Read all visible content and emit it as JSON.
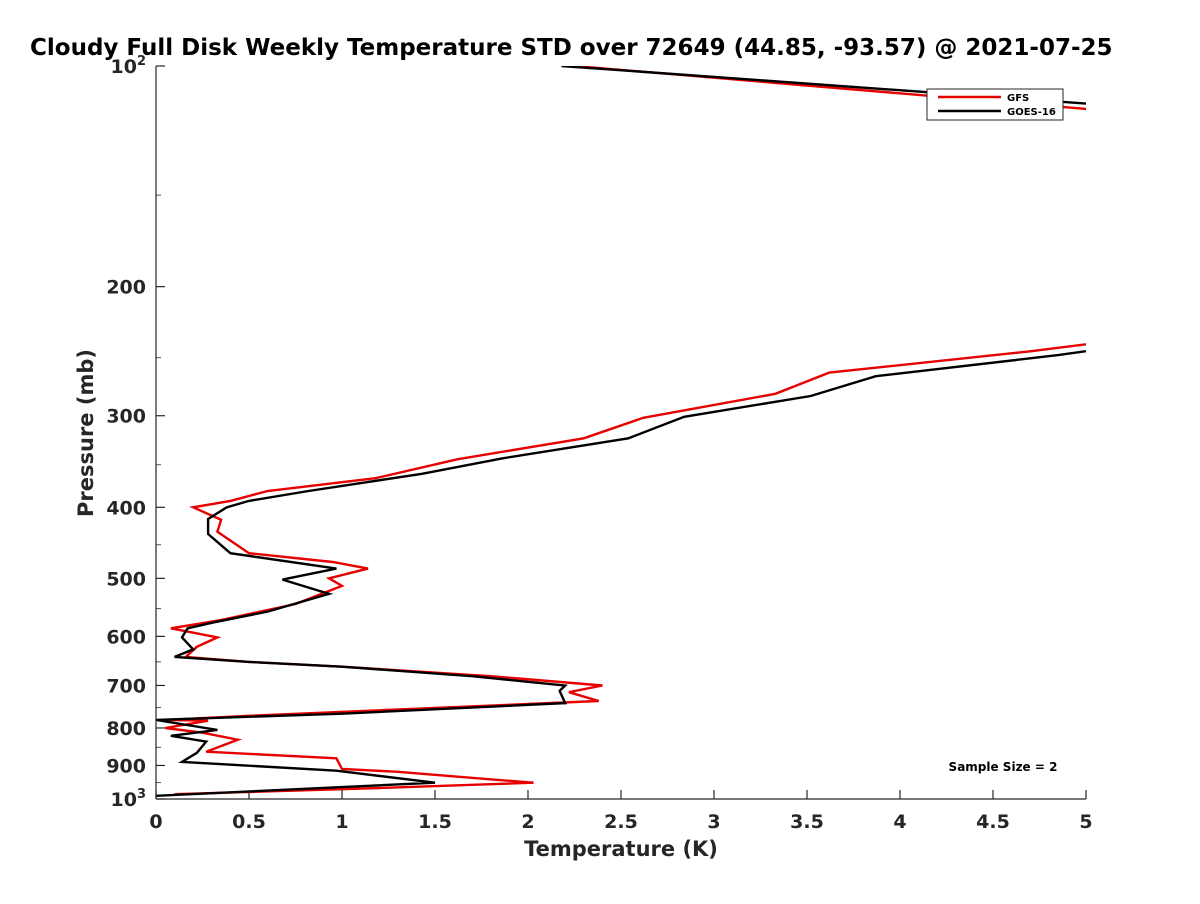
{
  "chart_data": {
    "type": "line",
    "title": "Cloudy Full Disk Weekly Temperature STD over 72649 (44.85, -93.57) @ 2021-07-25",
    "xlabel": "Temperature (K)",
    "ylabel": "Pressure (mb)",
    "xlim": [
      0,
      5
    ],
    "ylim": [
      100,
      1000
    ],
    "y_scale": "log",
    "y_direction": "reversed",
    "grid": false,
    "legend_position": "top-right",
    "x_ticks": [
      "0",
      "0.5",
      "1",
      "1.5",
      "2",
      "2.5",
      "3",
      "3.5",
      "4",
      "4.5",
      "5"
    ],
    "x_tick_values": [
      0,
      0.5,
      1,
      1.5,
      2,
      2.5,
      3,
      3.5,
      4,
      4.5,
      5
    ],
    "y_ticks": [
      {
        "value": 100,
        "base": "10",
        "exp": "2"
      },
      {
        "value": 200,
        "text": "200"
      },
      {
        "value": 300,
        "text": "300"
      },
      {
        "value": 400,
        "text": "400"
      },
      {
        "value": 500,
        "text": "500"
      },
      {
        "value": 600,
        "text": "600"
      },
      {
        "value": 700,
        "text": "700"
      },
      {
        "value": 800,
        "text": "800"
      },
      {
        "value": 900,
        "text": "900"
      },
      {
        "value": 1000,
        "base": "10",
        "exp": "3"
      }
    ],
    "annotation": "Sample Size = 2",
    "series": [
      {
        "name": "GFS",
        "color": "#e60000",
        "points": [
          [
            2.25,
            100
          ],
          [
            5.1,
            115
          ],
          [
            5.1,
            238
          ],
          [
            4.7,
            245
          ],
          [
            3.62,
            262
          ],
          [
            3.33,
            280
          ],
          [
            2.62,
            302
          ],
          [
            2.3,
            322
          ],
          [
            1.62,
            344
          ],
          [
            1.18,
            365
          ],
          [
            0.6,
            380
          ],
          [
            0.4,
            392
          ],
          [
            0.2,
            400
          ],
          [
            0.35,
            416
          ],
          [
            0.33,
            432
          ],
          [
            0.5,
            462
          ],
          [
            0.95,
            475
          ],
          [
            1.14,
            485
          ],
          [
            0.93,
            500
          ],
          [
            1.0,
            512
          ],
          [
            0.75,
            542
          ],
          [
            0.35,
            570
          ],
          [
            0.08,
            585
          ],
          [
            0.33,
            602
          ],
          [
            0.22,
            620
          ],
          [
            0.16,
            640
          ],
          [
            0.5,
            650
          ],
          [
            1.0,
            660
          ],
          [
            1.8,
            680
          ],
          [
            2.4,
            700
          ],
          [
            2.22,
            715
          ],
          [
            2.38,
            735
          ],
          [
            0.5,
            770
          ],
          [
            0.05,
            780
          ],
          [
            0.28,
            782
          ],
          [
            0.05,
            800
          ],
          [
            0.25,
            812
          ],
          [
            0.44,
            830
          ],
          [
            0.27,
            862
          ],
          [
            0.97,
            880
          ],
          [
            1.0,
            910
          ],
          [
            1.3,
            918
          ],
          [
            1.68,
            935
          ],
          [
            2.03,
            950
          ],
          [
            1.2,
            966
          ],
          [
            0.1,
            985
          ]
        ]
      },
      {
        "name": "GOES-16",
        "color": "#000000",
        "points": [
          [
            2.18,
            100
          ],
          [
            5.1,
            113
          ],
          [
            5.1,
            243
          ],
          [
            4.85,
            248
          ],
          [
            3.87,
            265
          ],
          [
            3.52,
            282
          ],
          [
            2.84,
            301
          ],
          [
            2.54,
            322
          ],
          [
            1.86,
            343
          ],
          [
            1.43,
            360
          ],
          [
            0.82,
            380
          ],
          [
            0.5,
            392
          ],
          [
            0.38,
            400
          ],
          [
            0.28,
            415
          ],
          [
            0.28,
            435
          ],
          [
            0.4,
            462
          ],
          [
            0.97,
            485
          ],
          [
            0.68,
            502
          ],
          [
            0.93,
            525
          ],
          [
            0.6,
            555
          ],
          [
            0.3,
            575
          ],
          [
            0.17,
            585
          ],
          [
            0.14,
            602
          ],
          [
            0.2,
            625
          ],
          [
            0.1,
            640
          ],
          [
            0.5,
            650
          ],
          [
            1.0,
            660
          ],
          [
            1.7,
            680
          ],
          [
            2.2,
            700
          ],
          [
            2.17,
            712
          ],
          [
            2.2,
            740
          ],
          [
            1.0,
            765
          ],
          [
            0.0,
            780
          ],
          [
            0.2,
            795
          ],
          [
            0.33,
            805
          ],
          [
            0.08,
            820
          ],
          [
            0.27,
            835
          ],
          [
            0.22,
            865
          ],
          [
            0.14,
            890
          ],
          [
            0.97,
            915
          ],
          [
            1.5,
            950
          ],
          [
            0.0,
            990
          ]
        ]
      }
    ]
  }
}
